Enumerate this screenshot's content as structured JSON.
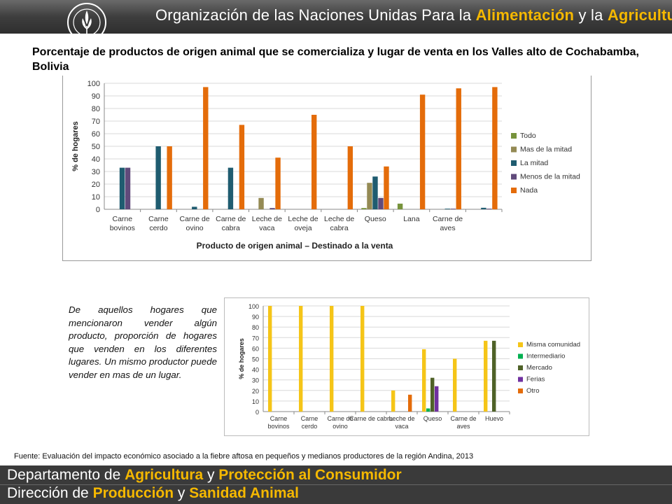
{
  "header": {
    "org_prefix": "Organización de las Naciones Unidas Para la ",
    "org_hl1": "Alimentación",
    "org_mid": " y la ",
    "org_hl2": "Agricultura",
    "logo_text": "FAO FIAT PANIS"
  },
  "slide_title": "Porcentaje de productos de origen animal que se comercializa y lugar de venta en los Valles alto de Cochabamba, Bolivia",
  "note": "De aquellos hogares que mencionaron vender algún producto, proporción de hogares que venden en los diferentes lugares. Un mismo productor puede vender en mas de un lugar.",
  "source": "Fuente: Evaluación del impacto económico asociado a la fiebre aftosa en pequeños y medianos productores de la región Andina, 2013",
  "footer": {
    "l1_prefix": "Departamento de ",
    "l1_hl1": "Agricultura",
    "l1_mid": " y ",
    "l1_hl2": "Protección al Consumidor",
    "l2_prefix": "Dirección de ",
    "l2_hl1": "Producción",
    "l2_mid": " y ",
    "l2_hl2": "Sanidad Animal"
  },
  "chart_data": [
    {
      "type": "bar",
      "xlabel": "Producto de origen animal – Destinado a la venta",
      "ylabel": "% de hogares",
      "ylim": [
        0,
        100
      ],
      "yticks": [
        0,
        10,
        20,
        30,
        40,
        50,
        60,
        70,
        80,
        90,
        100
      ],
      "legend_position": "right",
      "categories": [
        [
          "Carne",
          "bovinos"
        ],
        [
          "Carne",
          "cerdo"
        ],
        [
          "Carne de",
          "ovino"
        ],
        [
          "Carne de",
          "cabra"
        ],
        [
          "Leche de",
          "vaca"
        ],
        [
          "Leche de",
          "oveja"
        ],
        [
          "Leche de",
          "cabra"
        ],
        [
          "Queso"
        ],
        [
          "Lana"
        ],
        [
          "Carne de",
          "aves"
        ],
        [
          ""
        ]
      ],
      "series": [
        {
          "name": "Todo",
          "color": "#77933c",
          "values": [
            0,
            0,
            0,
            0,
            0,
            0,
            0,
            1,
            4.5,
            0,
            0
          ]
        },
        {
          "name": "Mas de la mitad",
          "color": "#948a54",
          "values": [
            0,
            0,
            0,
            0,
            9,
            0,
            0,
            21,
            0,
            0,
            0
          ]
        },
        {
          "name": "La mitad",
          "color": "#1f5c70",
          "values": [
            33,
            50,
            2,
            33,
            0,
            0,
            0,
            26,
            0,
            0.5,
            1.2
          ]
        },
        {
          "name": "Menos de la mitad",
          "color": "#604a7b",
          "values": [
            33,
            0,
            0,
            0,
            1,
            0,
            0,
            9,
            0,
            0.5,
            0.5
          ]
        },
        {
          "name": "Nada",
          "color": "#e46c0a",
          "values": [
            0,
            50,
            97,
            67,
            41,
            75,
            50,
            34,
            91,
            96,
            97
          ]
        }
      ]
    },
    {
      "type": "bar",
      "ylabel": "% de hogares",
      "ylim": [
        0,
        100
      ],
      "yticks": [
        0,
        10,
        20,
        30,
        40,
        50,
        60,
        70,
        80,
        90,
        100
      ],
      "legend_position": "right",
      "categories": [
        [
          "Carne",
          "bovinos"
        ],
        [
          "Carne",
          "cerdo"
        ],
        [
          "Carne de",
          "ovino"
        ],
        [
          "Carne de cabra"
        ],
        [
          "Leche de",
          "vaca"
        ],
        [
          "Queso"
        ],
        [
          "Carne de",
          "aves"
        ],
        [
          "Huevo"
        ]
      ],
      "series": [
        {
          "name": "Misma comunidad",
          "color": "#f5c518",
          "values": [
            100,
            100,
            100,
            100,
            20,
            59,
            50,
            67
          ]
        },
        {
          "name": "Intermediario",
          "color": "#00b050",
          "values": [
            0,
            0,
            0,
            0,
            0,
            3,
            0,
            0
          ]
        },
        {
          "name": "Mercado",
          "color": "#4f6228",
          "values": [
            0,
            0,
            0,
            0,
            0,
            32,
            0,
            67
          ]
        },
        {
          "name": "Ferias",
          "color": "#7030a0",
          "values": [
            0,
            0,
            0,
            0,
            0,
            24,
            0,
            0
          ]
        },
        {
          "name": "Otro",
          "color": "#e46c0a",
          "values": [
            0,
            0,
            0,
            0,
            16,
            0,
            0,
            0
          ]
        }
      ]
    }
  ]
}
